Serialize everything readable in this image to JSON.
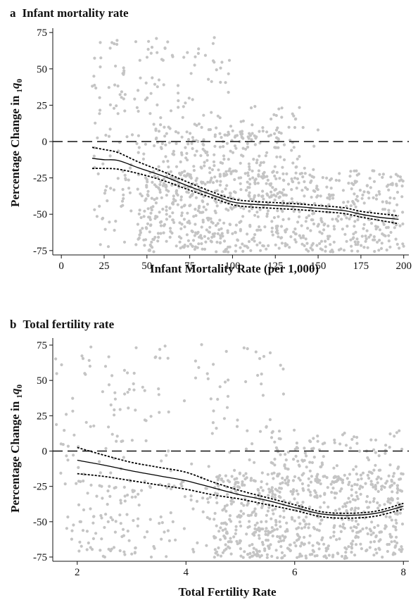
{
  "chart_data": [
    {
      "type": "scatter",
      "panel_letter": "a",
      "title": "Infant mortality rate",
      "xlabel": "Infant Mortality Rate (per 1,000)",
      "ylabel_prefix": "Percentage Change in ",
      "ylabel_subscript_pre": "1",
      "ylabel_symbol": "q",
      "ylabel_subscript_post": "0",
      "xlim": [
        -5,
        203
      ],
      "ylim": [
        -78,
        78
      ],
      "xticks": [
        0,
        25,
        50,
        75,
        100,
        125,
        150,
        175,
        200
      ],
      "yticks": [
        75,
        50,
        25,
        0,
        -25,
        -50,
        -75
      ],
      "ytick_labels": [
        "75",
        "50",
        "25",
        "0",
        "-25",
        "-50",
        "-75"
      ],
      "reference_line_y": 0,
      "series": [
        {
          "kind": "fit",
          "x": [
            18,
            25,
            33,
            45,
            60,
            75,
            90,
            100,
            110,
            125,
            140,
            150,
            165,
            175,
            185,
            197
          ],
          "y": [
            -11.5,
            -12.5,
            -13,
            -18,
            -24,
            -31,
            -37.5,
            -41.5,
            -43,
            -44,
            -45,
            -46,
            -47.5,
            -50,
            -52,
            -53.5
          ]
        },
        {
          "kind": "ci_upper",
          "x": [
            18,
            25,
            33,
            45,
            60,
            75,
            90,
            100,
            110,
            125,
            140,
            150,
            165,
            175,
            185,
            197
          ],
          "y": [
            -4,
            -5.5,
            -7.5,
            -14,
            -21,
            -28.5,
            -35.5,
            -39.5,
            -41,
            -42,
            -43,
            -44,
            -45.5,
            -48,
            -49.5,
            -51
          ]
        },
        {
          "kind": "ci_lower",
          "x": [
            18,
            25,
            33,
            45,
            60,
            75,
            90,
            100,
            110,
            125,
            140,
            150,
            165,
            175,
            185,
            197
          ],
          "y": [
            -18.5,
            -18.5,
            -19,
            -22,
            -27,
            -33.5,
            -39.5,
            -43.5,
            -45,
            -46,
            -47,
            -48,
            -49.5,
            -52,
            -54,
            -56.5
          ]
        }
      ],
      "scatter_clusters": [
        {
          "x": [
            18,
            100
          ],
          "y": [
            -76,
            72
          ],
          "n": 260
        },
        {
          "x": [
            45,
            200
          ],
          "y": [
            -76,
            -20
          ],
          "n": 700
        },
        {
          "x": [
            55,
            130
          ],
          "y": [
            -40,
            10
          ],
          "n": 180
        },
        {
          "x": [
            100,
            150
          ],
          "y": [
            -20,
            25
          ],
          "n": 60
        }
      ]
    },
    {
      "type": "scatter",
      "panel_letter": "b",
      "title": "Total fertility rate",
      "xlabel": "Total Fertility Rate",
      "ylabel_prefix": "Percentage Change in ",
      "ylabel_subscript_pre": "1",
      "ylabel_symbol": "q",
      "ylabel_subscript_post": "0",
      "xlim": [
        1.55,
        8.1
      ],
      "ylim": [
        -78,
        80
      ],
      "xticks": [
        2,
        4,
        6,
        8
      ],
      "yticks": [
        75,
        50,
        25,
        0,
        -25,
        -50,
        -75
      ],
      "ytick_labels": [
        "75",
        "50",
        "25",
        "0",
        "-25",
        "-50",
        "-75"
      ],
      "reference_line_y": 0,
      "series": [
        {
          "kind": "fit",
          "x": [
            2,
            2.5,
            3,
            3.5,
            4,
            4.5,
            5,
            5.5,
            6,
            6.5,
            7,
            7.5,
            8
          ],
          "y": [
            -6.5,
            -10,
            -14,
            -17.5,
            -21,
            -26,
            -31,
            -35,
            -40,
            -44.5,
            -45.5,
            -44,
            -39
          ]
        },
        {
          "kind": "ci_upper",
          "x": [
            2,
            2.5,
            3,
            3.5,
            4,
            4.5,
            5,
            5.5,
            6,
            6.5,
            7,
            7.5,
            8
          ],
          "y": [
            2.5,
            -3,
            -8,
            -11.5,
            -15,
            -22,
            -28,
            -33,
            -38,
            -43,
            -44,
            -42.5,
            -37
          ]
        },
        {
          "kind": "ci_lower",
          "x": [
            2,
            2.5,
            3,
            3.5,
            4,
            4.5,
            5,
            5.5,
            6,
            6.5,
            7,
            7.5,
            8
          ],
          "y": [
            -16,
            -18,
            -21,
            -24,
            -27,
            -31,
            -34,
            -38,
            -42,
            -46.5,
            -47.5,
            -46,
            -41
          ]
        }
      ],
      "scatter_clusters": [
        {
          "x": [
            1.6,
            5.8
          ],
          "y": [
            -75,
            76
          ],
          "n": 230
        },
        {
          "x": [
            4.5,
            8.0
          ],
          "y": [
            -76,
            -15
          ],
          "n": 620
        },
        {
          "x": [
            5.5,
            8.0
          ],
          "y": [
            -30,
            15
          ],
          "n": 140
        },
        {
          "x": [
            2.0,
            4.0
          ],
          "y": [
            -76,
            -20
          ],
          "n": 80
        }
      ]
    }
  ]
}
